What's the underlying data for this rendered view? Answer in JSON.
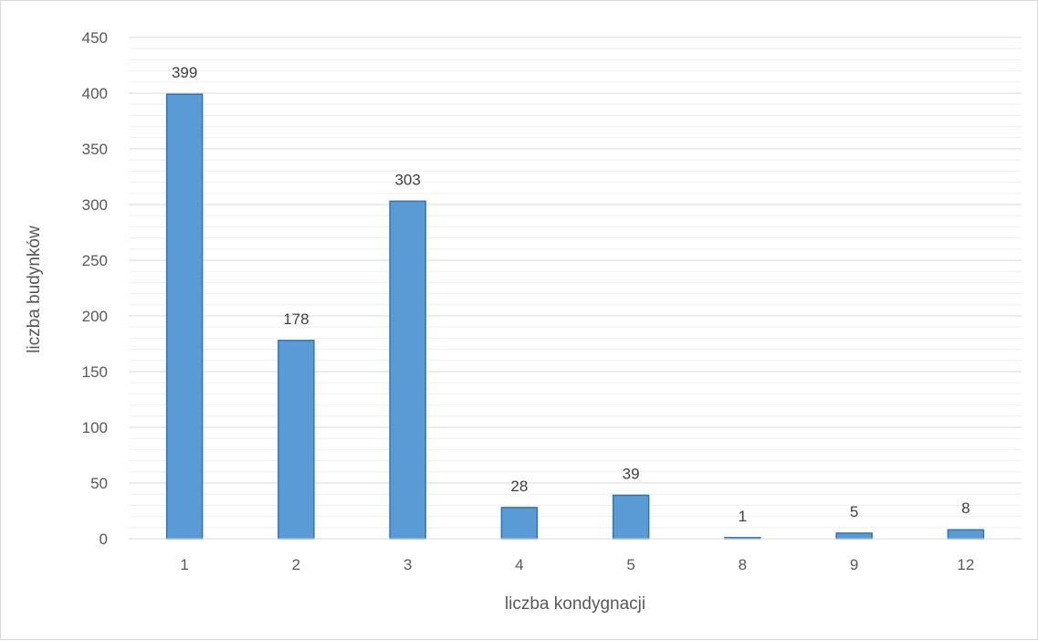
{
  "chart_data": {
    "type": "bar",
    "title": "",
    "xlabel": "liczba kondygnacji",
    "ylabel": "liczba budynków",
    "categories": [
      "1",
      "2",
      "3",
      "4",
      "5",
      "8",
      "9",
      "12"
    ],
    "values": [
      399,
      178,
      303,
      28,
      39,
      1,
      5,
      8
    ],
    "ylim": [
      0,
      450
    ],
    "yticks": [
      "0",
      "50",
      "100",
      "150",
      "200",
      "250",
      "300",
      "350",
      "400",
      "450"
    ],
    "grid": true,
    "minor_grid": true,
    "legend": "none",
    "colors": {
      "bar_fill": "#5b9bd5",
      "bar_edge": "#2e75b6",
      "grid_major": "#d9d9d9",
      "grid_minor": "#f0f0f0"
    }
  }
}
